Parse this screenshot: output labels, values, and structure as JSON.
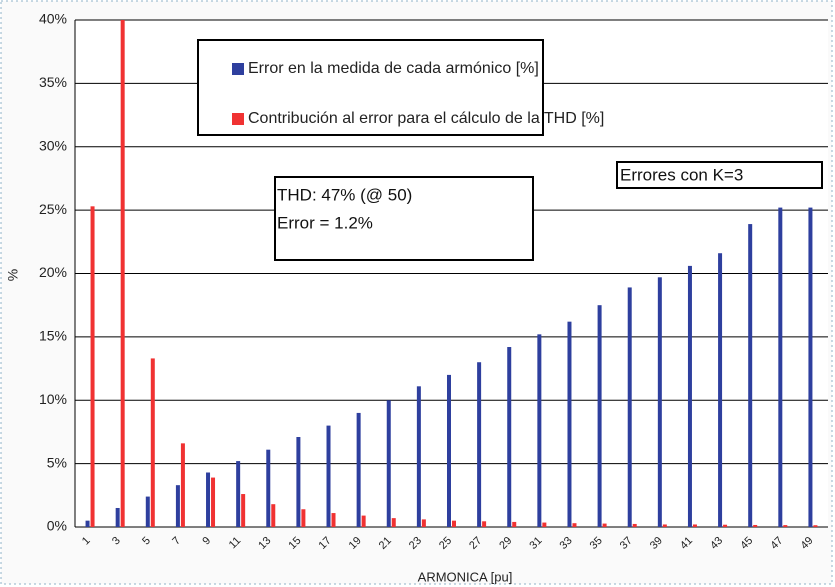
{
  "chart_data": {
    "type": "bar",
    "y_label": "%",
    "x_label": "ARMONICA [pu]",
    "categories": [
      "1",
      "3",
      "5",
      "7",
      "9",
      "11",
      "13",
      "15",
      "17",
      "19",
      "21",
      "23",
      "25",
      "27",
      "29",
      "31",
      "33",
      "35",
      "37",
      "39",
      "41",
      "43",
      "45",
      "47",
      "49"
    ],
    "series": [
      {
        "name": "Error en la  medida de cada armónico [%]",
        "color": "#2e3f9e",
        "values": [
          0.5,
          1.5,
          2.4,
          3.3,
          4.3,
          5.2,
          6.1,
          7.1,
          8.0,
          9.0,
          10.0,
          11.1,
          12.0,
          13.0,
          14.2,
          15.2,
          16.2,
          17.5,
          18.9,
          19.7,
          20.6,
          21.6,
          23.9,
          25.2,
          25.2
        ]
      },
      {
        "name": "Contribución al error para el cálculo de la THD [%]",
        "color": "#f03232",
        "values": [
          25.3,
          40,
          13.3,
          6.6,
          3.9,
          2.6,
          1.8,
          1.4,
          1.1,
          0.9,
          0.7,
          0.6,
          0.5,
          0.45,
          0.4,
          0.35,
          0.3,
          0.27,
          0.24,
          0.2,
          0.2,
          0.18,
          0.16,
          0.15,
          0.14
        ]
      }
    ],
    "ylim": [
      0,
      40
    ],
    "yticks": [
      {
        "value": 0,
        "label": "0%"
      },
      {
        "value": 5,
        "label": "5%"
      },
      {
        "value": 10,
        "label": "10%"
      },
      {
        "value": 15,
        "label": "15%"
      },
      {
        "value": 20,
        "label": "20%"
      },
      {
        "value": 25,
        "label": "25%"
      },
      {
        "value": 30,
        "label": "30%"
      },
      {
        "value": 35,
        "label": "35%"
      },
      {
        "value": 40,
        "label": "40%"
      }
    ],
    "grid": true,
    "annotations": [
      [
        "THD: 47% (@ 50)",
        "Error = 1.2%"
      ],
      [
        "Errores con K=3"
      ]
    ]
  }
}
